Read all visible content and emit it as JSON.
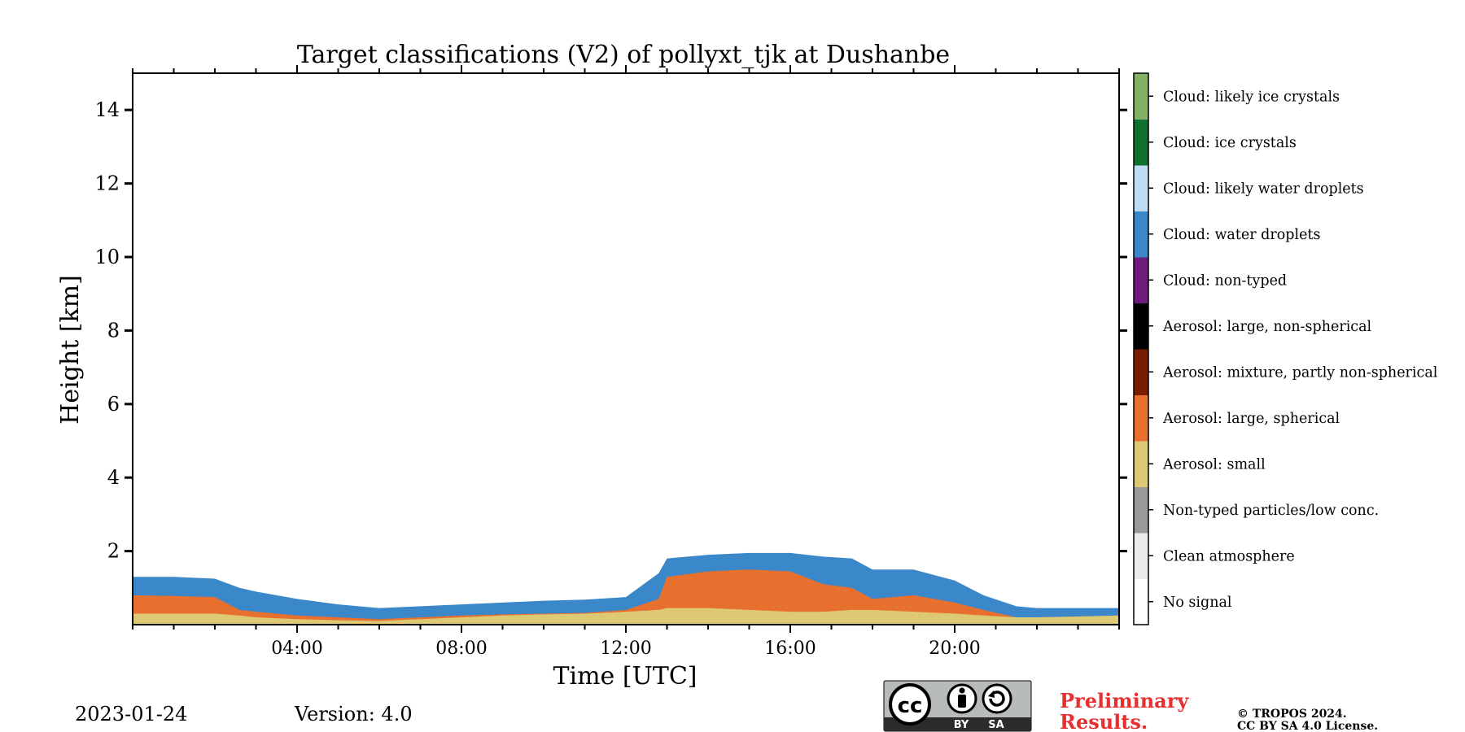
{
  "chart_data": {
    "type": "heatmap",
    "title": "Target classifications (V2) of pollyxt_tjk at Dushanbe",
    "xlabel": "Time [UTC]",
    "ylabel": "Height [km]",
    "xlim": [
      0,
      24
    ],
    "ylim": [
      0,
      15
    ],
    "x_tick_labels": [
      "04:00",
      "08:00",
      "12:00",
      "16:00",
      "20:00"
    ],
    "x_tick_values": [
      4,
      8,
      12,
      16,
      20
    ],
    "y_tick_values": [
      2,
      4,
      6,
      8,
      10,
      12,
      14
    ],
    "y_tick_labels": [
      "2",
      "4",
      "6",
      "8",
      "10",
      "12",
      "14"
    ],
    "colorbar": {
      "placement": "right",
      "classes": [
        {
          "label": "No signal",
          "color": "#ffffff"
        },
        {
          "label": "Clean atmosphere",
          "color": "#ebebeb"
        },
        {
          "label": "Non-typed particles/low conc.",
          "color": "#999999"
        },
        {
          "label": "Aerosol: small",
          "color": "#ddc874"
        },
        {
          "label": "Aerosol: large, spherical",
          "color": "#e8702e"
        },
        {
          "label": "Aerosol: mixture, partly non-spherical",
          "color": "#7a1c00"
        },
        {
          "label": "Aerosol: large, non-spherical",
          "color": "#000000"
        },
        {
          "label": "Cloud: non-typed",
          "color": "#6f1a7d"
        },
        {
          "label": "Cloud: water droplets",
          "color": "#3a87c9"
        },
        {
          "label": "Cloud: likely water droplets",
          "color": "#bfdcf4"
        },
        {
          "label": "Cloud: ice crystals",
          "color": "#0f7030"
        },
        {
          "label": "Cloud: likely ice crystals",
          "color": "#84b166"
        }
      ]
    },
    "layer_profile": {
      "description_units": "time in hours UTC, heights in km",
      "time": [
        0,
        1,
        2,
        2.6,
        3,
        4,
        5,
        6,
        7,
        8,
        9,
        10,
        11,
        12,
        12.8,
        13,
        14,
        15,
        16,
        16.8,
        17.5,
        18,
        19,
        20,
        20.7,
        21.5,
        22,
        23,
        24
      ],
      "small_aerosol_top": [
        0.3,
        0.3,
        0.3,
        0.25,
        0.2,
        0.15,
        0.12,
        0.1,
        0.15,
        0.2,
        0.25,
        0.28,
        0.3,
        0.35,
        0.4,
        0.45,
        0.45,
        0.4,
        0.35,
        0.35,
        0.4,
        0.4,
        0.35,
        0.3,
        0.25,
        0.2,
        0.2,
        0.22,
        0.25
      ],
      "large_spherical_top": [
        0.8,
        0.78,
        0.75,
        0.4,
        0.35,
        0.25,
        0.2,
        0.15,
        0.2,
        0.25,
        0.28,
        0.3,
        0.32,
        0.4,
        0.7,
        1.3,
        1.45,
        1.5,
        1.45,
        1.1,
        1.0,
        0.7,
        0.8,
        0.6,
        0.4,
        0.2,
        0.2,
        0.22,
        0.25
      ],
      "cloud_top": [
        1.3,
        1.3,
        1.25,
        1.0,
        0.9,
        0.7,
        0.55,
        0.45,
        0.5,
        0.55,
        0.6,
        0.65,
        0.68,
        0.75,
        1.4,
        1.8,
        1.9,
        1.95,
        1.95,
        1.85,
        1.8,
        1.5,
        1.5,
        1.2,
        0.8,
        0.5,
        0.45,
        0.45,
        0.45
      ]
    }
  },
  "footer": {
    "date": "2023-01-24",
    "version": "Version: 4.0",
    "license_badge": {
      "cc": "cc",
      "by": "BY",
      "sa": "SA"
    },
    "preliminary_line1": "Preliminary",
    "preliminary_line2": "Results.",
    "copyright_line1": "© TROPOS 2024.",
    "copyright_line2": "CC BY SA 4.0 License.",
    "preliminary_color": "#e82f2f",
    "badge_gray": "#b8bcb9",
    "badge_dark": "#2b2b2b"
  }
}
